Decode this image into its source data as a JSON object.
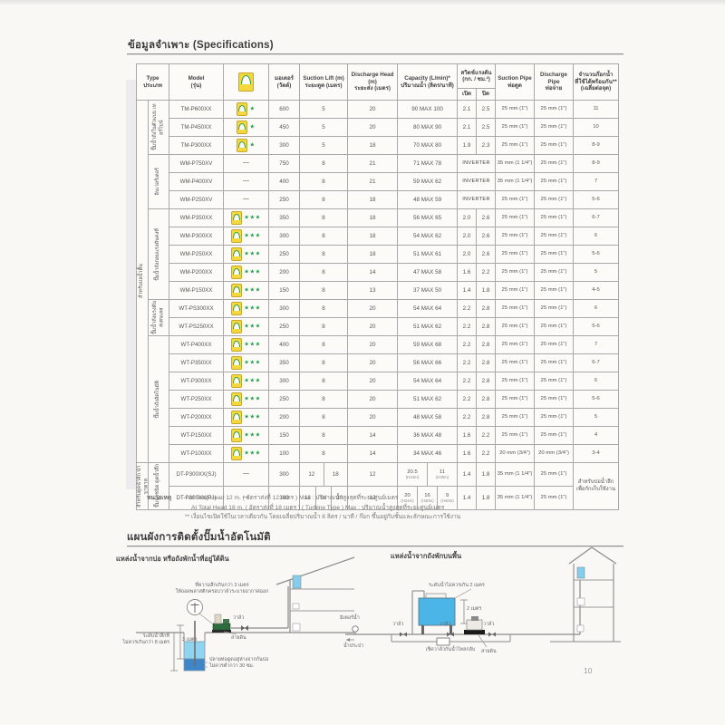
{
  "page": {
    "title": "ข้อมูลจำเพาะ (Specifications)",
    "page_number": "10"
  },
  "table": {
    "header": {
      "type": [
        "Type",
        "ประเภท"
      ],
      "model": [
        "Model",
        "(รุ่น)"
      ],
      "energy_icon": "energy-label-no5-icon",
      "motor": [
        "มอเตอร์",
        "(วัตต์)"
      ],
      "suction_lift": [
        "Suction Lift (m)",
        "ระยะดูด (เมตร)"
      ],
      "discharge_head": [
        "Discharge Head (m)",
        "ระยะส่ง (เมตร)"
      ],
      "capacity": [
        "Capacity (L/min)*",
        "ปริมาณน้ำ (ลิตร/นาที)"
      ],
      "switch": [
        "สวิตช์แรงดัน",
        "(กก. / ซม.²)"
      ],
      "switch_on": "เปิด",
      "switch_off": "ปิด",
      "suction_pipe": [
        "Suction Pipe",
        "ท่อดูด"
      ],
      "discharge_pipe": [
        "Discharge Pipe",
        "ท่อจ่าย"
      ],
      "taps": [
        "จำนวนก๊อกน้ำ",
        "ที่ใช้ได้พร้อมกัน**",
        "(เฉลี่ยต่อจุด)"
      ]
    },
    "outer_groups": [
      {
        "label": "สำหรับบ่อน้ำตื้น",
        "rows": 20
      },
      {
        "label": "สำหรับดูดน้ำลึก น้ำบาดาล",
        "rows": 2
      }
    ],
    "groups": [
      {
        "label": "ปั๊มน้ำถังในตัวแบบ เทอร์ไบน์",
        "rows": [
          {
            "model": "TM-P600XX",
            "stars": 1,
            "watts": "600",
            "suction": "5",
            "discharge": "20",
            "capacity": "90 MAX 100",
            "sw_on": "2.1",
            "sw_off": "2.5",
            "pipe_s": "25 mm (1\")",
            "pipe_d": "25 mm (1\")",
            "taps": "11"
          },
          {
            "model": "TM-P450XX",
            "stars": 1,
            "watts": "450",
            "suction": "5",
            "discharge": "20",
            "capacity": "80 MAX 90",
            "sw_on": "2.1",
            "sw_off": "2.5",
            "pipe_s": "25 mm (1\")",
            "pipe_d": "25 mm (1\")",
            "taps": "10"
          },
          {
            "model": "TM-P300XX",
            "stars": 1,
            "watts": "300",
            "suction": "5",
            "discharge": "18",
            "capacity": "70 MAX 80",
            "sw_on": "1.9",
            "sw_off": "2.3",
            "pipe_s": "25 mm (1\")",
            "pipe_d": "25 mm (1\")",
            "taps": "8-9"
          }
        ]
      },
      {
        "label": "อินเวอร์เตอร์",
        "rows": [
          {
            "model": "WM-P750XV",
            "stars": 0,
            "watts": "750",
            "suction": "8",
            "discharge": "21",
            "capacity": "71 MAX 78",
            "sw": "INVERTER",
            "pipe_s": "35 mm (1 1/4\")",
            "pipe_d": "25 mm (1\")",
            "taps": "8-9"
          },
          {
            "model": "WM-P400XV",
            "stars": 0,
            "watts": "400",
            "suction": "8",
            "discharge": "21",
            "capacity": "59 MAX 62",
            "sw": "INVERTER",
            "pipe_s": "35 mm (1 1/4\")",
            "pipe_d": "25 mm (1\")",
            "taps": "7"
          },
          {
            "model": "WM-P250XV",
            "stars": 0,
            "watts": "250",
            "suction": "8",
            "discharge": "18",
            "capacity": "48 MAX 59",
            "sw": "INVERTER",
            "pipe_s": "25 mm (1\")",
            "pipe_d": "25 mm (1\")",
            "taps": "5-6"
          }
        ]
      },
      {
        "label": "ปั๊มน้ำถังกลมแรงดันคงที่",
        "rows": [
          {
            "model": "WM-P350XX",
            "stars": 3,
            "watts": "350",
            "suction": "8",
            "discharge": "18",
            "capacity": "56 MAX 65",
            "sw_on": "2.0",
            "sw_off": "2.6",
            "pipe_s": "25 mm (1\")",
            "pipe_d": "25 mm (1\")",
            "taps": "6-7"
          },
          {
            "model": "WM-P300XX",
            "stars": 3,
            "watts": "300",
            "suction": "8",
            "discharge": "18",
            "capacity": "54 MAX 62",
            "sw_on": "2.0",
            "sw_off": "2.6",
            "pipe_s": "25 mm (1\")",
            "pipe_d": "25 mm (1\")",
            "taps": "6"
          },
          {
            "model": "WM-P250XX",
            "stars": 3,
            "watts": "250",
            "suction": "8",
            "discharge": "18",
            "capacity": "51 MAX 61",
            "sw_on": "2.0",
            "sw_off": "2.6",
            "pipe_s": "25 mm (1\")",
            "pipe_d": "25 mm (1\")",
            "taps": "5-6"
          },
          {
            "model": "WM-P200XX",
            "stars": 3,
            "watts": "200",
            "suction": "8",
            "discharge": "14",
            "capacity": "47 MAX 58",
            "sw_on": "1.6",
            "sw_off": "2.2",
            "pipe_s": "25 mm (1\")",
            "pipe_d": "25 mm (1\")",
            "taps": "5"
          },
          {
            "model": "WM-P150XX",
            "stars": 3,
            "watts": "150",
            "suction": "8",
            "discharge": "13",
            "capacity": "37 MAX 50",
            "sw_on": "1.4",
            "sw_off": "1.8",
            "pipe_s": "25 mm (1\")",
            "pipe_d": "25 mm (1\")",
            "taps": "4-5"
          }
        ]
      },
      {
        "label": "ปั๊มน้ำถังแรงดัน สเตนเลส",
        "rows": [
          {
            "model": "WT-PS300XX",
            "stars": 3,
            "watts": "300",
            "suction": "8",
            "discharge": "20",
            "capacity": "54 MAX 64",
            "sw_on": "2.2",
            "sw_off": "2.8",
            "pipe_s": "25 mm (1\")",
            "pipe_d": "25 mm (1\")",
            "taps": "6"
          },
          {
            "model": "WT-PS250XX",
            "stars": 3,
            "watts": "250",
            "suction": "8",
            "discharge": "20",
            "capacity": "51 MAX 62",
            "sw_on": "2.2",
            "sw_off": "2.8",
            "pipe_s": "25 mm (1\")",
            "pipe_d": "25 mm (1\")",
            "taps": "5-6"
          }
        ]
      },
      {
        "label": "ปั๊มน้ำถังอัตโนมัติ",
        "rows": [
          {
            "model": "WT-P400XX",
            "stars": 3,
            "watts": "400",
            "suction": "8",
            "discharge": "20",
            "capacity": "59 MAX 68",
            "sw_on": "2.2",
            "sw_off": "2.8",
            "pipe_s": "25 mm (1\")",
            "pipe_d": "25 mm (1\")",
            "taps": "7"
          },
          {
            "model": "WT-P350XX",
            "stars": 3,
            "watts": "350",
            "suction": "8",
            "discharge": "20",
            "capacity": "56 MAX 66",
            "sw_on": "2.2",
            "sw_off": "2.8",
            "pipe_s": "25 mm (1\")",
            "pipe_d": "25 mm (1\")",
            "taps": "6-7"
          },
          {
            "model": "WT-P300XX",
            "stars": 3,
            "watts": "300",
            "suction": "8",
            "discharge": "20",
            "capacity": "54 MAX 64",
            "sw_on": "2.2",
            "sw_off": "2.8",
            "pipe_s": "25 mm (1\")",
            "pipe_d": "25 mm (1\")",
            "taps": "6"
          },
          {
            "model": "WT-P250XX",
            "stars": 3,
            "watts": "250",
            "suction": "8",
            "discharge": "20",
            "capacity": "51 MAX 62",
            "sw_on": "2.2",
            "sw_off": "2.8",
            "pipe_s": "25 mm (1\")",
            "pipe_d": "25 mm (1\")",
            "taps": "5-6"
          },
          {
            "model": "WT-P200XX",
            "stars": 3,
            "watts": "200",
            "suction": "8",
            "discharge": "20",
            "capacity": "48 MAX 58",
            "sw_on": "2.2",
            "sw_off": "2.8",
            "pipe_s": "25 mm (1\")",
            "pipe_d": "25 mm (1\")",
            "taps": "5"
          },
          {
            "model": "WT-P150XX",
            "stars": 3,
            "watts": "150",
            "suction": "8",
            "discharge": "14",
            "capacity": "36 MAX 48",
            "sw_on": "1.6",
            "sw_off": "2.2",
            "pipe_s": "25 mm (1\")",
            "pipe_d": "25 mm (1\")",
            "taps": "4"
          },
          {
            "model": "WT-P100XX",
            "stars": 3,
            "watts": "100",
            "suction": "8",
            "discharge": "14",
            "capacity": "34 MAX 46",
            "sw_on": "1.6",
            "sw_off": "2.2",
            "pipe_s": "20 mm (3/4\")",
            "pipe_d": "20 mm (3/4\")",
            "taps": "3-4"
          }
        ]
      },
      {
        "label": "ปั๊มน้ำชนิด ดูดน้ำลึก",
        "rows": [
          {
            "model": "DT-P300XX(SJ)",
            "stars": 0,
            "tall": true,
            "watts": "300",
            "suction": [
              "12",
              "18"
            ],
            "discharge": "12",
            "capacity": [
              [
                "20.5",
                "(H24m)"
              ],
              [
                "11",
                "(H30m)"
              ]
            ],
            "sw_on": "1.4",
            "sw_off": "1.8",
            "pipe_s": "35 mm (1 1/4\")",
            "pipe_d": "25 mm (1\")",
            "taps": {
              "rowspan": 2,
              "lines": [
                "สำหรับบ่อน้ำลึก",
                "เพื่อกักเก็บใช้งาน"
              ]
            }
          },
          {
            "model": "DT-P300XX(PJ)",
            "stars": 0,
            "tall": true,
            "watts": "300",
            "suction": [
              "18",
              "24",
              "30"
            ],
            "discharge": "12",
            "capacity": [
              [
                "20",
                "(H24m)"
              ],
              [
                "16",
                "(H30m)"
              ],
              [
                "9",
                "(H40m)"
              ]
            ],
            "sw_on": "1.4",
            "sw_off": "1.8",
            "pipe_s": "35 mm (1 1/4\")",
            "pipe_d": "25 mm (1\")",
            "taps": null
          }
        ]
      }
    ]
  },
  "notes": {
    "label": "หมายเหตุ",
    "lines": [
      "* At Total Head 12 m. ( อัตราส่งที่ 12 เมตร ) Max : ปริมาณน้ำสูงสุดที่ระยะศูนย์เมตร",
      "At Total Head 18 m. ( อัตราส่งที่ 18 เมตร ) ( Turbine Type ) Max : ปริมาณน้ำสูงสุดที่ระยะศูนย์เมตร",
      "** เงื่อนไขเปิดใช้ในเวลาเดียวกัน โดยเฉลี่ยปริมาณน้ำ 8 ลิตร / นาที / ก๊อก ขึ้นอยู่กับชั้นและลักษณะการใช้งาน"
    ]
  },
  "diagrams": {
    "section_title": "แผนผังการติดตั้งปั๊มน้ำอัตโนมัติ",
    "left": {
      "title": "แหล่งน้ำจากบ่อ หรือถังพักน้ำที่อยู่ใต้ดิน",
      "note_depth": [
        "ที่ความลึกเกินกว่า 3 เมตร",
        "ให้ถอดพลาสติกครอบวาล์วระบายอากาศออก"
      ],
      "dim_3m": "3 เมตร",
      "water_level": [
        "ระดับน้ำลึกที่",
        "ไม่ควรเกินกว่า 8 เมตร"
      ],
      "valve": "วาล์ว",
      "ground_wire": "สายดิน",
      "pipe_end": [
        "ปลายท่อดูดอยู่ห่างจากก้นบ่อ",
        "ไม่ควรต่ำกว่า 30 ซม."
      ]
    },
    "right": {
      "title": "แหล่งน้ำจากถังพักบนพื้น",
      "water_level": "ระดับน้ำไม่ควรเกิน 2 เมตร",
      "dim_2m": "2 เมตร",
      "valve": "วาล์ว",
      "meter": "มิเตอร์น้ำ",
      "tap_water": "น้ำประปา",
      "check_valve": "เช็ควาล์วกันน้ำไหลกลับ",
      "ground_wire": "สายดิน"
    }
  },
  "colors": {
    "star_green": "#1e9c4d",
    "badge_yellow": "#f3d93e",
    "tank_light_blue": "#8fd4f0",
    "tank_dark_blue": "#3f86c9",
    "right_tank_blue": "#4ab5e6",
    "pump_green": "#2e6b3e"
  }
}
